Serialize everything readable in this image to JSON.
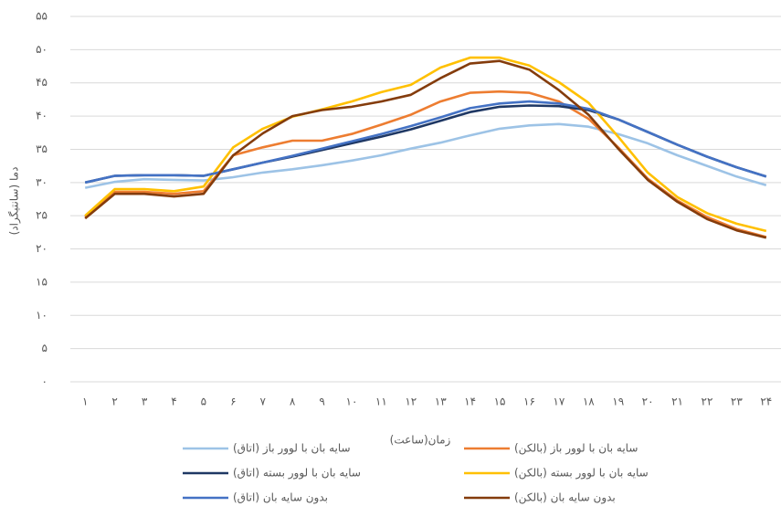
{
  "chart_data": {
    "type": "line",
    "x_label": "زمان(ساعت)",
    "y_label": "دما (سانتیگراد)",
    "categories": [
      "۱",
      "۲",
      "۳",
      "۴",
      "۵",
      "۶",
      "۷",
      "۸",
      "۹",
      "۱۰",
      "۱۱",
      "۱۲",
      "۱۳",
      "۱۴",
      "۱۵",
      "۱۶",
      "۱۷",
      "۱۸",
      "۱۹",
      "۲۰",
      "۲۱",
      "۲۲",
      "۲۳",
      "۲۴"
    ],
    "ylim": [
      0,
      55
    ],
    "yticks": [
      {
        "value": 0,
        "label": "۰"
      },
      {
        "value": 5,
        "label": "۵"
      },
      {
        "value": 10,
        "label": "۱۰"
      },
      {
        "value": 15,
        "label": "۱۵"
      },
      {
        "value": 20,
        "label": "۲۰"
      },
      {
        "value": 25,
        "label": "۲۵"
      },
      {
        "value": 30,
        "label": "۳۰"
      },
      {
        "value": 35,
        "label": "۳۵"
      },
      {
        "value": 40,
        "label": "۴۰"
      },
      {
        "value": 45,
        "label": "۴۵"
      },
      {
        "value": 50,
        "label": "۵۰"
      },
      {
        "value": 55,
        "label": "۵۵"
      }
    ],
    "grid": true,
    "series": [
      {
        "name": "سایه بان با لوور باز  (اتاق)",
        "color": "#9dc3e6",
        "values": [
          29.2,
          30.1,
          30.5,
          30.4,
          30.3,
          30.8,
          31.5,
          32,
          32.6,
          33.3,
          34.1,
          35.1,
          36,
          37.1,
          38.1,
          38.6,
          38.8,
          38.4,
          37.3,
          35.9,
          34.1,
          32.5,
          30.9,
          29.6
        ]
      },
      {
        "name": "سایه بان با لوور باز  (بالکن)",
        "color": "#ed7d31",
        "values": [
          24.8,
          28.6,
          28.6,
          28.3,
          28.7,
          34.1,
          35.3,
          36.3,
          36.3,
          37.3,
          38.7,
          40.2,
          42.2,
          43.5,
          43.7,
          43.5,
          42.2,
          39.6,
          35.3,
          30.6,
          27.3,
          24.8,
          23,
          21.8
        ]
      },
      {
        "name": "سایه بان با لوور بسته  (اتاق)",
        "color": "#1f3864",
        "values": [
          30,
          31,
          31.1,
          31.1,
          31,
          32,
          33,
          33.9,
          34.9,
          35.9,
          36.9,
          38,
          39.3,
          40.6,
          41.4,
          41.6,
          41.5,
          40.9,
          39.5,
          37.6,
          35.7,
          33.9,
          32.3,
          30.9
        ]
      },
      {
        "name": "سایه بان با لوور بسته  (بالکن)",
        "color": "#ffc000",
        "values": [
          25,
          29,
          29,
          28.7,
          29.4,
          35.3,
          38.1,
          39.9,
          41,
          42.2,
          43.6,
          44.7,
          47.3,
          48.8,
          48.8,
          47.6,
          45.1,
          42,
          36.9,
          31.5,
          27.8,
          25.4,
          23.8,
          22.7
        ]
      },
      {
        "name": "بدون سایه بان (اتاق)",
        "color": "#4472c4",
        "values": [
          30,
          31,
          31.1,
          31.1,
          31,
          32,
          33,
          34,
          35.1,
          36.2,
          37.3,
          38.5,
          39.8,
          41.2,
          41.9,
          42.2,
          41.9,
          41.1,
          39.5,
          37.6,
          35.7,
          33.9,
          32.3,
          30.9
        ]
      },
      {
        "name": "بدون سایه بان (بالکن)",
        "color": "#843c0c",
        "values": [
          24.6,
          28.3,
          28.3,
          27.9,
          28.3,
          34.1,
          37.4,
          40,
          40.9,
          41.4,
          42.2,
          43.2,
          45.7,
          47.9,
          48.3,
          47,
          43.9,
          40.2,
          35.1,
          30.4,
          27.1,
          24.5,
          22.8,
          21.7
        ]
      }
    ]
  }
}
